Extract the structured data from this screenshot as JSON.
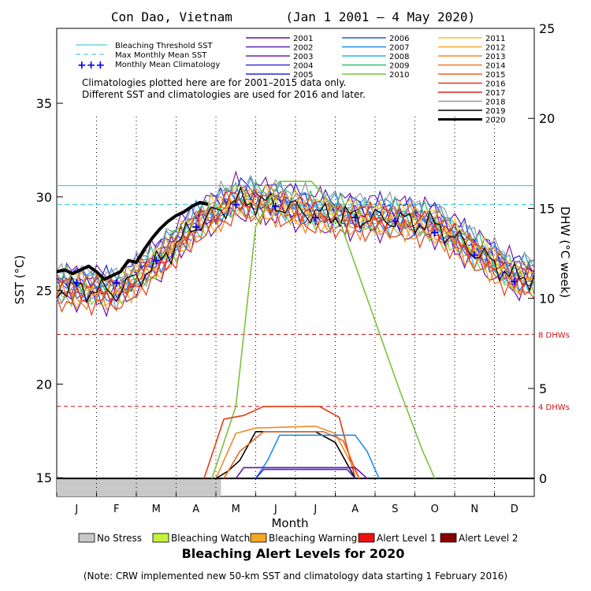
{
  "chart_data": {
    "type": "line",
    "title": "Con Dao, Vietnam       (Jan 1 2001 – 4 May 2020)",
    "xlabel": "Month",
    "ylabel_left": "SST (°C)",
    "ylabel_right": "DHW (°C week)",
    "months": [
      "J",
      "F",
      "M",
      "A",
      "M",
      "J",
      "J",
      "A",
      "S",
      "O",
      "N",
      "D"
    ],
    "ylim_sst": [
      14,
      39
    ],
    "yticks_sst": [
      15,
      20,
      25,
      30,
      35
    ],
    "ylim_dhw": [
      -1,
      25
    ],
    "yticks_dhw": [
      0,
      5,
      10,
      15,
      20,
      25
    ],
    "reference_lines": {
      "bleaching_threshold_sst": 30.6,
      "max_monthly_mean_sst": 29.6,
      "dhw_thresholds": [
        {
          "value": 8,
          "label": "8 DHWs"
        },
        {
          "value": 4,
          "label": "4 DHWs"
        }
      ]
    },
    "legend": {
      "reference_items": [
        "Bleaching Threshold SST",
        "Max Monthly Mean SST",
        "Monthly Mean Climatology"
      ],
      "note_lines": [
        "Climatologies plotted here are for 2001–2015 data only.",
        "Different SST and climatologies are used for 2016 and later."
      ],
      "years": [
        {
          "name": "2001",
          "color": "#6a0dad"
        },
        {
          "name": "2002",
          "color": "#5b1fbf"
        },
        {
          "name": "2003",
          "color": "#7a1fa0"
        },
        {
          "name": "2004",
          "color": "#3a2fcf"
        },
        {
          "name": "2005",
          "color": "#2525d8"
        },
        {
          "name": "2006",
          "color": "#1f5fe0"
        },
        {
          "name": "2007",
          "color": "#1f8fe8"
        },
        {
          "name": "2008",
          "color": "#2ab7e6"
        },
        {
          "name": "2009",
          "color": "#2cc070"
        },
        {
          "name": "2010",
          "color": "#7cc23c"
        },
        {
          "name": "2011",
          "color": "#f5c518"
        },
        {
          "name": "2012",
          "color": "#f5a623"
        },
        {
          "name": "2013",
          "color": "#f08a24"
        },
        {
          "name": "2014",
          "color": "#ee7a1c"
        },
        {
          "name": "2015",
          "color": "#e8641a"
        },
        {
          "name": "2016",
          "color": "#e23a1a"
        },
        {
          "name": "2017",
          "color": "#e0201a"
        },
        {
          "name": "2018",
          "color": "#999999"
        },
        {
          "name": "2019",
          "color": "#000000"
        },
        {
          "name": "2020",
          "color": "#000000"
        }
      ]
    },
    "climatology_points": [
      {
        "x": 0.5,
        "y": 25.4
      },
      {
        "x": 1.5,
        "y": 25.4
      },
      {
        "x": 2.5,
        "y": 26.6
      },
      {
        "x": 3.5,
        "y": 28.4
      },
      {
        "x": 4.5,
        "y": 29.6
      },
      {
        "x": 5.5,
        "y": 29.5
      },
      {
        "x": 6.5,
        "y": 28.9
      },
      {
        "x": 7.5,
        "y": 28.9
      },
      {
        "x": 8.5,
        "y": 28.7
      },
      {
        "x": 9.5,
        "y": 28.1
      },
      {
        "x": 10.5,
        "y": 26.9
      },
      {
        "x": 11.5,
        "y": 25.5
      }
    ],
    "sst_2020": {
      "x": [
        0.0,
        0.2,
        0.4,
        0.6,
        0.8,
        1.0,
        1.2,
        1.4,
        1.6,
        1.8,
        2.0,
        2.2,
        2.4,
        2.6,
        2.8,
        3.0,
        3.2,
        3.4,
        3.6,
        3.8
      ],
      "y": [
        26.0,
        26.1,
        25.9,
        26.1,
        26.3,
        26.0,
        25.6,
        25.8,
        26.0,
        26.6,
        26.5,
        27.2,
        27.8,
        28.3,
        28.7,
        29.0,
        29.2,
        29.5,
        29.7,
        29.6
      ]
    },
    "dhw_series": [
      {
        "name": "2010",
        "x": [
          3.9,
          4.5,
          5.0,
          5.6,
          6.4,
          7.0,
          7.8,
          8.6,
          9.2,
          9.5
        ],
        "y": [
          0,
          4,
          14,
          16.5,
          16.5,
          15,
          10,
          5,
          1.5,
          0
        ]
      },
      {
        "name": "2016",
        "x": [
          3.7,
          4.2,
          4.7,
          5.2,
          6.6,
          7.1,
          7.5
        ],
        "y": [
          0,
          3.3,
          3.5,
          4,
          4,
          3.4,
          0
        ]
      },
      {
        "name": "2013",
        "x": [
          4.0,
          4.5,
          5.0,
          6.5,
          7.0,
          7.6
        ],
        "y": [
          0,
          2.5,
          2.8,
          2.9,
          2.5,
          0
        ]
      },
      {
        "name": "2019",
        "x": [
          4.0,
          4.3,
          4.6,
          5.0,
          6.5,
          7.0,
          7.5
        ],
        "y": [
          0,
          0.4,
          1,
          2.6,
          2.6,
          2,
          0
        ]
      },
      {
        "name": "2015",
        "x": [
          4.2,
          4.6,
          5.2,
          6.7,
          7.2,
          7.6
        ],
        "y": [
          0,
          1.5,
          2.6,
          2.6,
          2.1,
          0
        ]
      },
      {
        "name": "2007",
        "x": [
          5.0,
          5.3,
          5.6,
          7.5,
          7.8,
          8.1
        ],
        "y": [
          0,
          1,
          2.4,
          2.4,
          1.5,
          0
        ]
      },
      {
        "name": "2001",
        "x": [
          4.5,
          4.7,
          7.5,
          7.8
        ],
        "y": [
          0,
          0.6,
          0.6,
          0
        ]
      },
      {
        "name": "2004",
        "x": [
          5.0,
          5.2,
          7.3,
          7.5
        ],
        "y": [
          0,
          0.5,
          0.5,
          0
        ]
      }
    ],
    "no_stress_2020": {
      "x_start": 0,
      "x_end": 4.13
    },
    "alert_levels": {
      "title": "Bleaching Alert Levels for 2020",
      "items": [
        {
          "label": "No Stress",
          "color": "#c8c8c8"
        },
        {
          "label": "Bleaching Watch",
          "color": "#c5f23c"
        },
        {
          "label": "Bleaching Warning",
          "color": "#f5a623"
        },
        {
          "label": "Alert Level 1",
          "color": "#ee1111"
        },
        {
          "label": "Alert Level 2",
          "color": "#880000"
        }
      ]
    },
    "footnote": "(Note: CRW implemented new 50-km SST and climatology data starting 1 February 2016)"
  }
}
